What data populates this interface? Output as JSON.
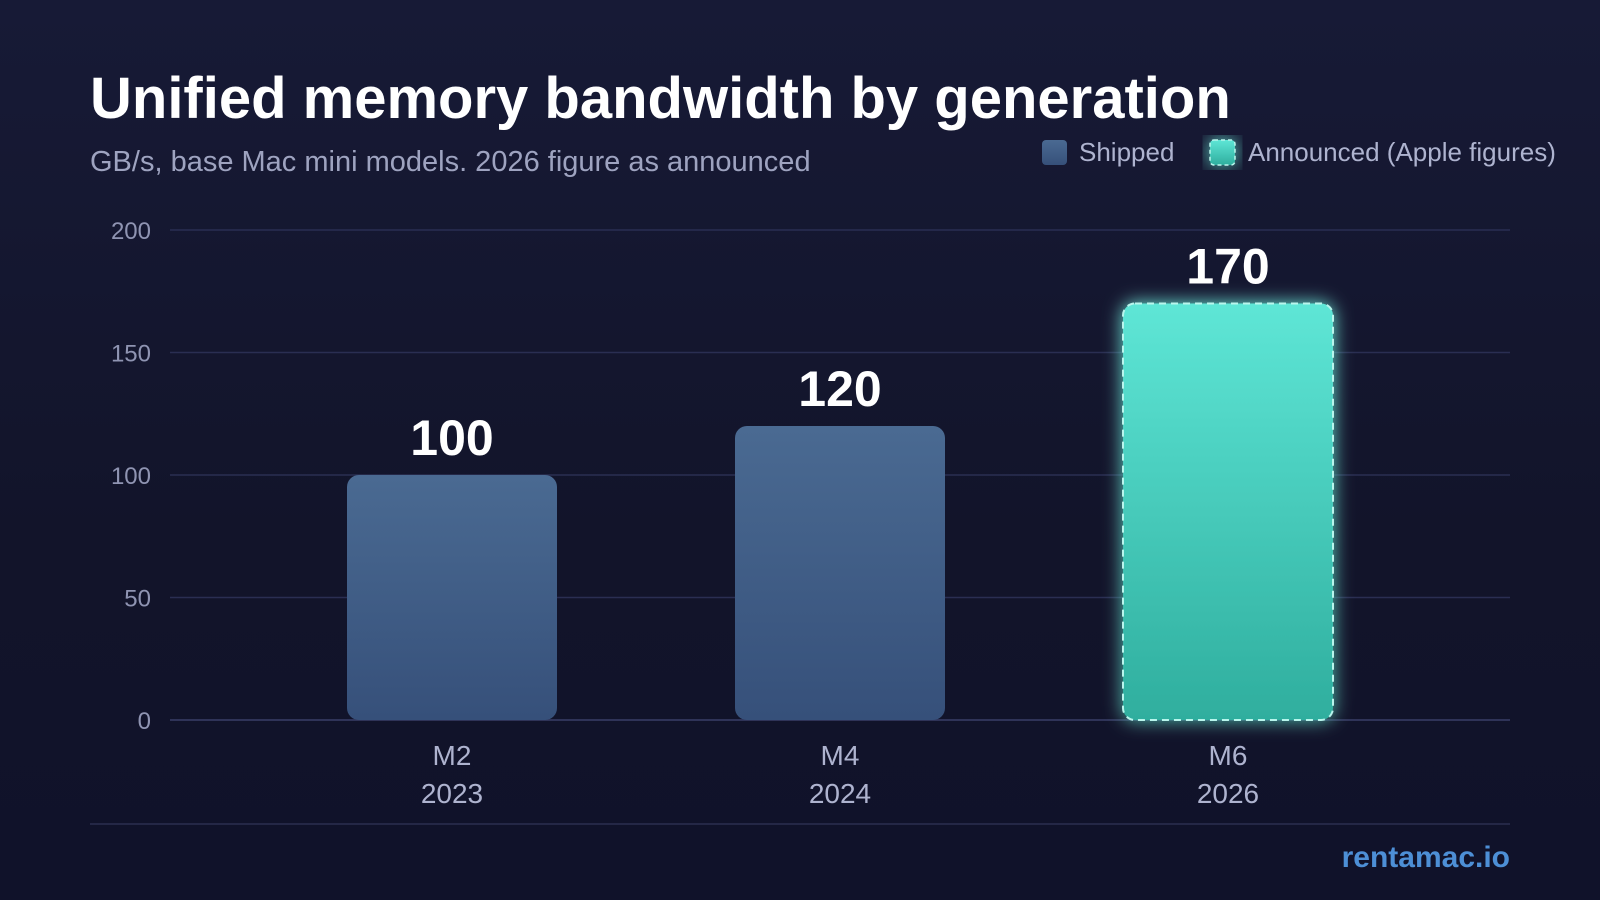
{
  "colors": {
    "shipped_top": "#4a6a92",
    "shipped_bottom": "#36507a",
    "announced_top": "#5ee6d6",
    "announced_bottom": "#2fae9e",
    "announced_border": "#b8f5ec",
    "brand": "#4d8fd6"
  },
  "legend": {
    "placement": "top-right",
    "items": [
      {
        "label": "Shipped",
        "style": "shipped"
      },
      {
        "label": "Announced (Apple figures)",
        "style": "announced"
      }
    ]
  },
  "brand": "rentamac.io",
  "chart_data": {
    "type": "bar",
    "title": "Unified memory bandwidth by generation",
    "subtitle": "GB/s, base Mac mini models. 2026 figure as announced",
    "xlabel": "",
    "ylabel": "",
    "ylim": [
      0,
      200
    ],
    "yticks": [
      0,
      50,
      100,
      150,
      200
    ],
    "grid": true,
    "categories": [
      {
        "name": "M2",
        "year": "2023"
      },
      {
        "name": "M4",
        "year": "2024"
      },
      {
        "name": "M6",
        "year": "2026"
      }
    ],
    "values": [
      100,
      120,
      170
    ],
    "status": [
      "shipped",
      "shipped",
      "announced"
    ]
  }
}
